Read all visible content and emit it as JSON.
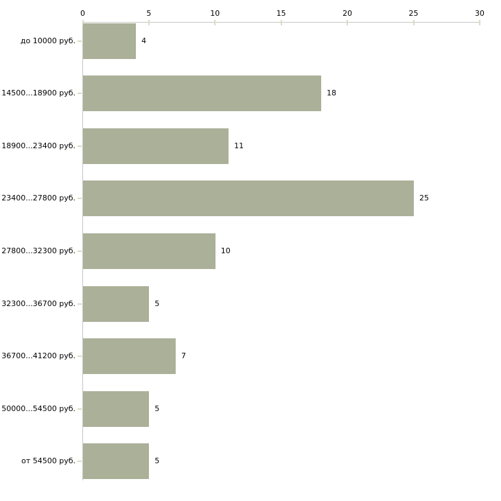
{
  "chart_data": {
    "type": "bar",
    "orientation": "horizontal",
    "title": "",
    "xlabel": "",
    "ylabel": "",
    "categories": [
      "до 10000 руб.",
      "14500...18900 руб.",
      "18900...23400 руб.",
      "23400...27800 руб.",
      "27800...32300 руб.",
      "32300...36700 руб.",
      "36700...41200 руб.",
      "50000...54500 руб.",
      "от 54500 руб."
    ],
    "values": [
      4,
      18,
      11,
      25,
      10,
      5,
      7,
      5,
      5
    ],
    "value_labels": [
      "4",
      "18",
      "11",
      "25",
      "10",
      "5",
      "7",
      "5",
      "5"
    ],
    "x_ticks": [
      0,
      5,
      10,
      15,
      20,
      25,
      30
    ],
    "xlim": [
      0,
      30
    ],
    "grid": false,
    "legend": "none",
    "axis_position": "top",
    "colors": {
      "bar": "#abb098",
      "axis_line": "#c6c6c6",
      "tick_mark": "#d9dcc1",
      "text": "#000000",
      "background": "#ffffff"
    }
  }
}
